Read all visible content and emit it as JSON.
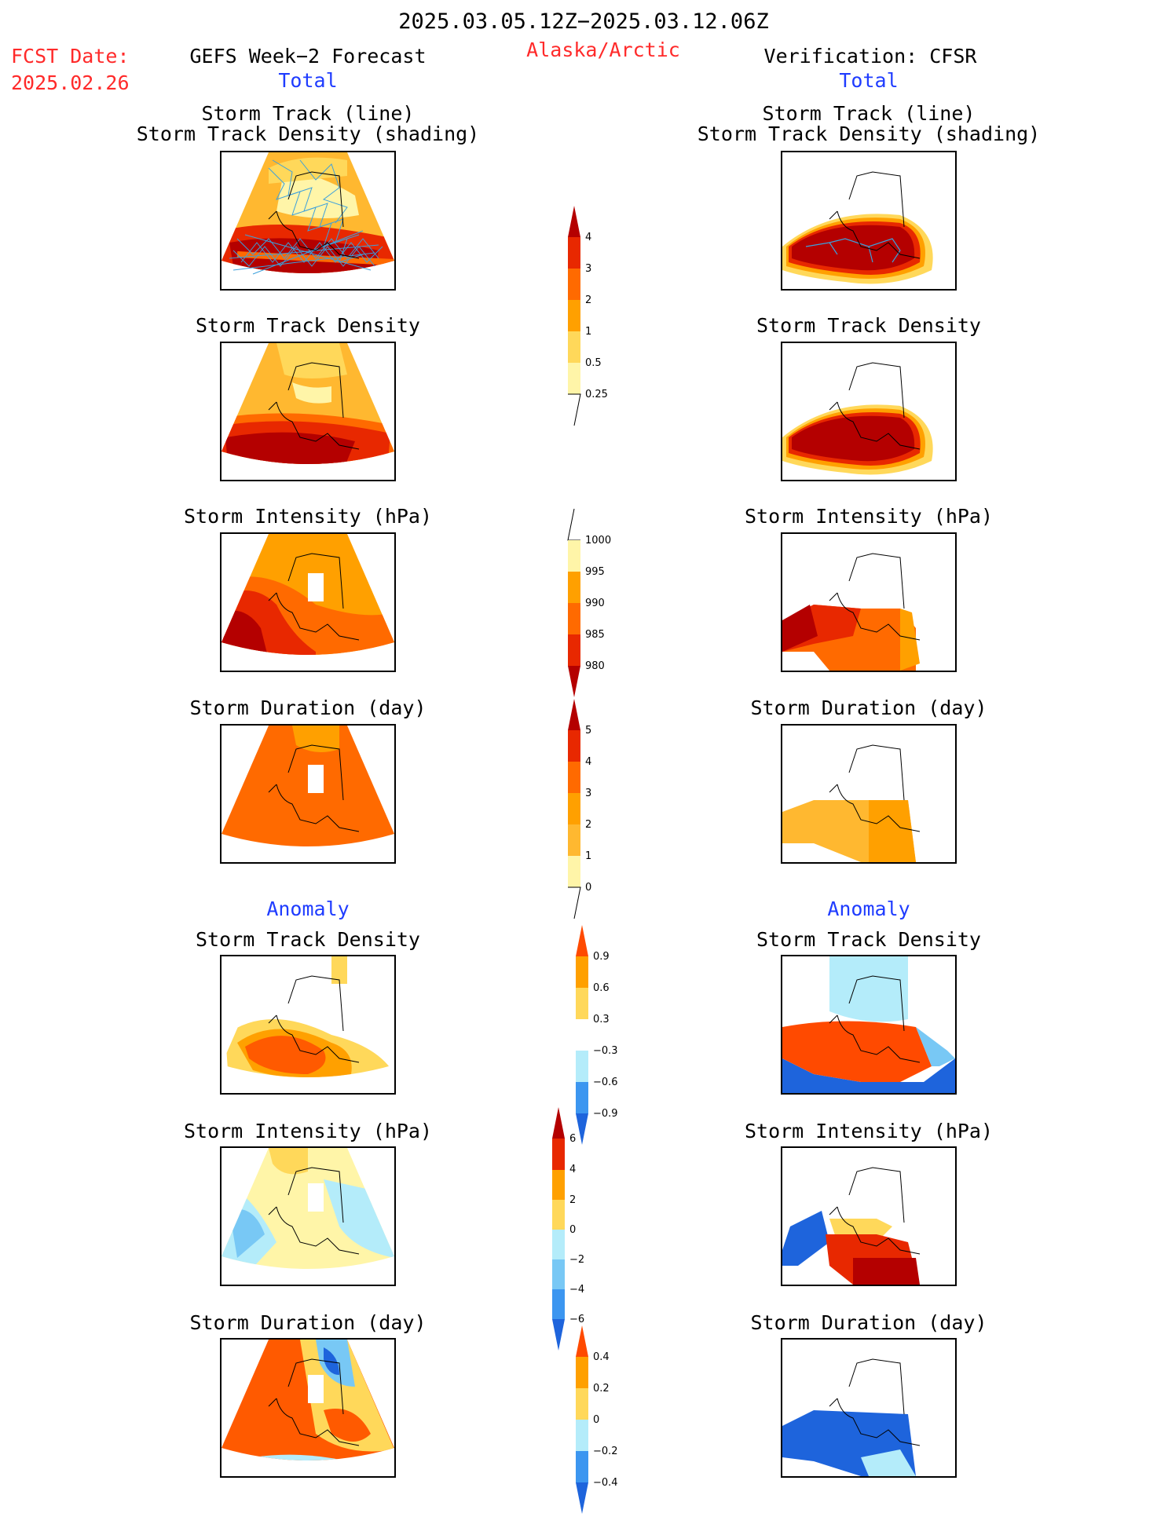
{
  "header": {
    "period": "2025.03.05.12Z−2025.03.12.06Z",
    "fcst_label": "FCST Date:",
    "fcst_date": "2025.02.26",
    "left_title": "GEFS Week−2 Forecast",
    "region": "Alaska/Arctic",
    "right_title": "Verification: CFSR"
  },
  "sections": {
    "total": "Total",
    "anomaly": "Anomaly"
  },
  "panel_titles": {
    "track_line": "Storm Track (line)",
    "track_density_shading": "Storm Track Density (shading)",
    "track_density": "Storm Track Density",
    "intensity": "Storm Intensity (hPa)",
    "duration": "Storm Duration (day)"
  },
  "colorbars": {
    "total_density": [
      "4",
      "3",
      "2",
      "1",
      "0.5",
      "0.25"
    ],
    "total_intensity": [
      "1000",
      "995",
      "990",
      "985",
      "980"
    ],
    "total_duration": [
      "5",
      "4",
      "3",
      "2",
      "1",
      "0"
    ],
    "anom_density": [
      "0.9",
      "0.6",
      "0.3",
      "−0.3",
      "−0.6",
      "−0.9"
    ],
    "anom_intensity": [
      "6",
      "4",
      "2",
      "0",
      "−2",
      "−4",
      "−6"
    ],
    "anom_duration": [
      "0.4",
      "0.2",
      "0",
      "−0.2",
      "−0.4"
    ]
  },
  "colors": {
    "lightyellow": "#fff5a8",
    "yellow": "#ffd85a",
    "lightorange": "#ffb830",
    "orange": "#ffa000",
    "darkorange": "#ff6a00",
    "red": "#e82800",
    "darkred": "#b40000",
    "lightblue": "#b4ecfa",
    "midblue": "#78c8f5",
    "blue": "#3c96f0",
    "darkblue": "#1e64dc",
    "track_line": "#3ca0dc"
  }
}
